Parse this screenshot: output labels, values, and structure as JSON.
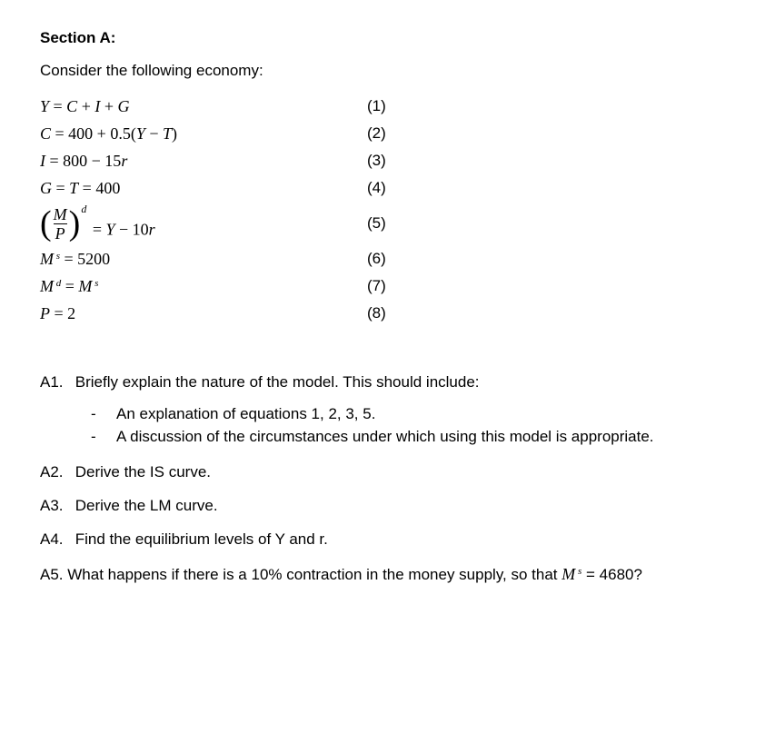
{
  "section_title": "Section A:",
  "intro": "Consider the following economy:",
  "equations": [
    {
      "eq_html": "<span class='v'>Y</span> = <span class='v'>C</span> + <span class='v'>I</span> + <span class='v'>G</span>",
      "num": "(1)",
      "tall": false
    },
    {
      "eq_html": "<span class='v'>C</span> = 400 + 0.5(<span class='v'>Y</span> − <span class='v'>T</span>)",
      "num": "(2)",
      "tall": false
    },
    {
      "eq_html": "<span class='v'>I</span> = 800 − 15<span class='v'>r</span>",
      "num": "(3)",
      "tall": false
    },
    {
      "eq_html": "<span class='v'>G</span> = <span class='v'>T</span> = 400",
      "num": "(4)",
      "tall": false
    },
    {
      "eq_html": "<span class='frac-paren'><span class='paren'>(</span><span class='frac'><span class='top'>M</span><span class='bar'></span><span class='bot'>P</span></span><span class='paren'>)</span><span class='frac-sup'>d</span></span> = <span class='v'>Y</span> − 10<span class='v'>r</span>",
      "num": "(5)",
      "tall": true
    },
    {
      "eq_html": "<span class='v'>M</span><span class='sup'>&nbsp;s</span> = 5200",
      "num": "(6)",
      "tall": false
    },
    {
      "eq_html": "<span class='v'>M</span><span class='sup'>&nbsp;d</span> = <span class='v'>M</span><span class='sup'>&nbsp;s</span>",
      "num": "(7)",
      "tall": false
    },
    {
      "eq_html": "<span class='v'>P</span> = 2",
      "num": "(8)",
      "tall": false
    }
  ],
  "a1": {
    "label": "A1.",
    "text": "Briefly explain the nature of the model. This should include:",
    "bullets": [
      "An explanation of equations 1, 2, 3, 5.",
      "A discussion of the circumstances under which using this model is appropriate."
    ]
  },
  "a2": {
    "label": "A2.",
    "text": "Derive the IS curve."
  },
  "a3": {
    "label": "A3.",
    "text": "Derive the LM curve."
  },
  "a4": {
    "label": "A4.",
    "text": "Find the equilibrium levels of Y and r."
  },
  "a5": {
    "label": "A5.",
    "pre": "What happens if there is a 10% contraction in the money supply, so that ",
    "var_html": "<span class='v'>M</span><span class='sup'>&nbsp;s</span>",
    "post": " = 4680?"
  },
  "colors": {
    "bg": "#ffffff",
    "text": "#000000"
  }
}
